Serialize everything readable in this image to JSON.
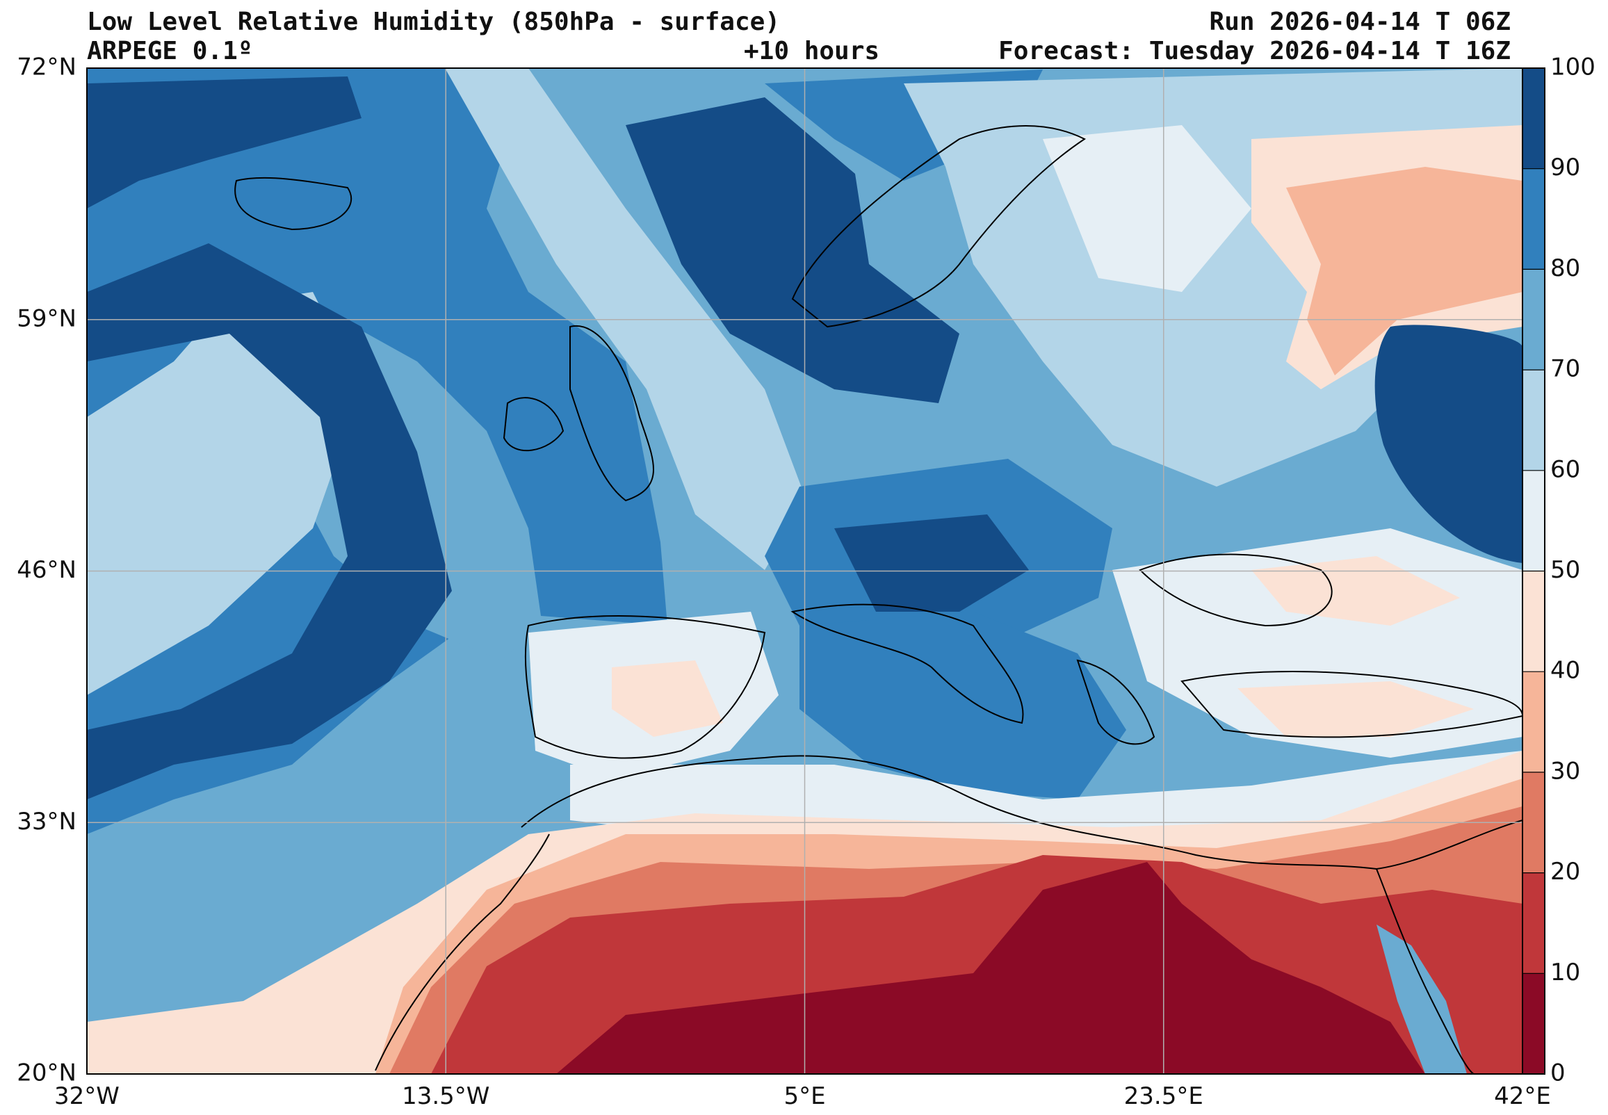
{
  "header": {
    "title": "Low Level Relative Humidity (850hPa - surface)",
    "run": "Run 2026-04-14 T 06Z",
    "model": "ARPEGE 0.1º",
    "lead": "+10 hours",
    "forecast": "Forecast: Tuesday 2026-04-14 T 16Z"
  },
  "map": {
    "lon_range": [
      -32,
      42
    ],
    "lat_range": [
      20,
      72
    ],
    "lat_ticks": [
      {
        "value": 72,
        "label": "72°N"
      },
      {
        "value": 59,
        "label": "59°N"
      },
      {
        "value": 46,
        "label": "46°N"
      },
      {
        "value": 33,
        "label": "33°N"
      },
      {
        "value": 20,
        "label": "20°N"
      }
    ],
    "lon_ticks": [
      {
        "value": -32,
        "label": "32°W"
      },
      {
        "value": -13.5,
        "label": "13.5°W"
      },
      {
        "value": 5,
        "label": "5°E"
      },
      {
        "value": 23.5,
        "label": "23.5°E"
      },
      {
        "value": 42,
        "label": "42°E"
      }
    ],
    "grid": true
  },
  "colorbar": {
    "min": 0,
    "max": 100,
    "ticks": [
      "0",
      "10",
      "20",
      "30",
      "40",
      "50",
      "60",
      "70",
      "80",
      "90",
      "100"
    ],
    "colors": [
      "#8b0a26",
      "#c0373a",
      "#e07a63",
      "#f6b599",
      "#fbe2d5",
      "#e6eff5",
      "#b3d5e8",
      "#6aabd1",
      "#3180bd",
      "#144c87"
    ]
  }
}
